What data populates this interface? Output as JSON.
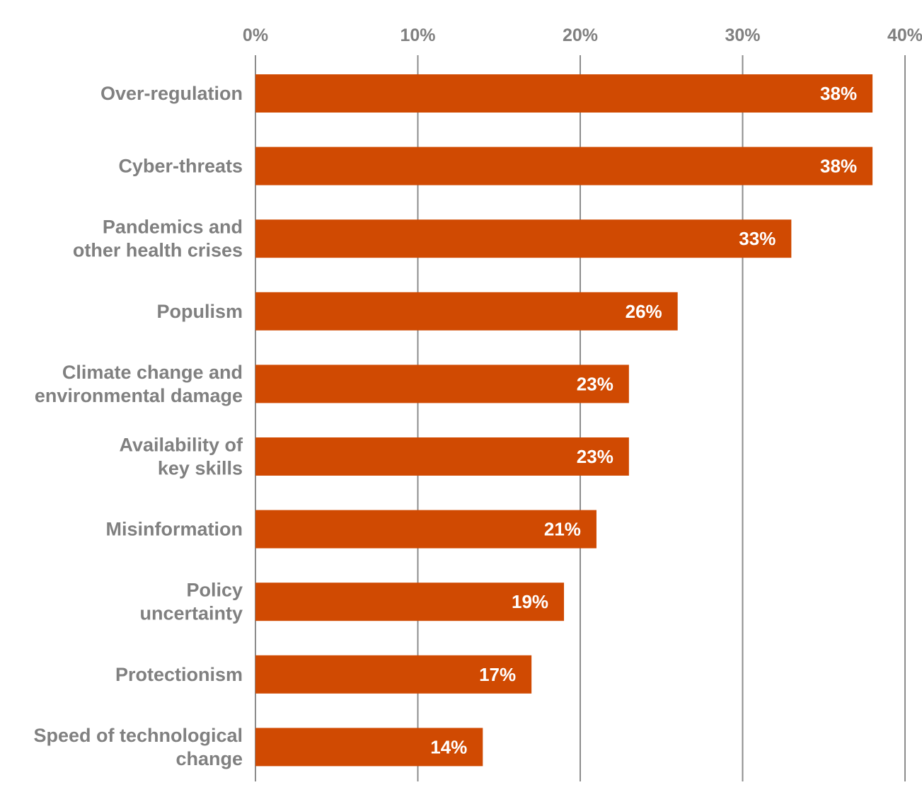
{
  "chart_data": {
    "type": "bar",
    "orientation": "horizontal",
    "title": "",
    "xlabel": "",
    "ylabel": "",
    "categories": [
      [
        "Over-regulation"
      ],
      [
        "Cyber-threats"
      ],
      [
        "Pandemics and",
        "other health crises"
      ],
      [
        "Populism"
      ],
      [
        "Climate change and",
        "environmental damage"
      ],
      [
        "Availability of",
        "key skills"
      ],
      [
        "Misinformation"
      ],
      [
        "Policy",
        "uncertainty"
      ],
      [
        "Protectionism"
      ],
      [
        "Speed of technological",
        "change"
      ]
    ],
    "values": [
      38,
      38,
      33,
      26,
      23,
      23,
      21,
      19,
      17,
      14
    ],
    "value_labels": [
      "38%",
      "38%",
      "33%",
      "26%",
      "23%",
      "23%",
      "21%",
      "19%",
      "17%",
      "14%"
    ],
    "xlim": [
      0,
      40
    ],
    "x_ticks": [
      0,
      10,
      20,
      30,
      40
    ],
    "x_tick_labels": [
      "0%",
      "10%",
      "20%",
      "30%",
      "40%"
    ],
    "x_axis_position": "top",
    "grid": true,
    "legend": "none",
    "colors": {
      "bar": "#d04a02",
      "text": "#808080",
      "grid": "#8c8c8c",
      "value_text": "#ffffff"
    }
  }
}
